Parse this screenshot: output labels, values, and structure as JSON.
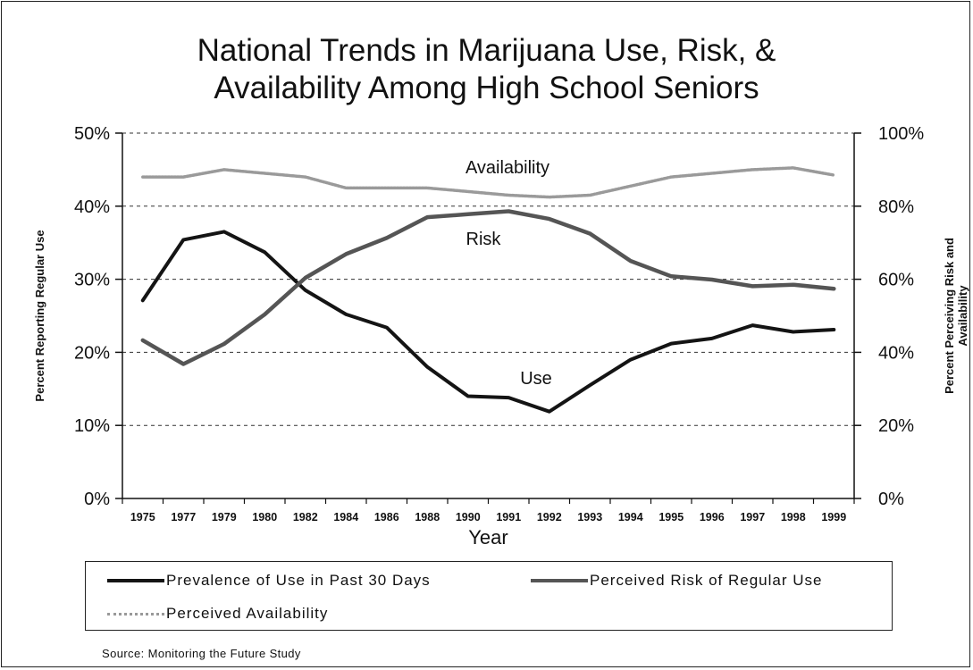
{
  "chart_data": {
    "type": "line",
    "title": [
      "National Trends in Marijuana Use, Risk, &",
      "Availability Among High School Seniors"
    ],
    "xlabel": "Year",
    "ylabel_left": "Percent Reporting Regular Use",
    "ylabel_right": [
      "Percent Perceiving Risk and",
      "Availability"
    ],
    "categories": [
      "1975",
      "1977",
      "1979",
      "1980",
      "1982",
      "1984",
      "1986",
      "1988",
      "1990",
      "1991",
      "1992",
      "1993",
      "1994",
      "1995",
      "1996",
      "1997",
      "1998",
      "1999"
    ],
    "y_left": {
      "range": [
        0,
        50
      ],
      "ticks": [
        "0%",
        "10%",
        "20%",
        "30%",
        "40%",
        "50%"
      ]
    },
    "y_right": {
      "range": [
        0,
        100
      ],
      "ticks": [
        "0%",
        "20%",
        "40%",
        "60%",
        "80%",
        "100%"
      ]
    },
    "series": [
      {
        "name": "Prevalence of Use in Past 30 Days",
        "axis": "left",
        "color": "#141414",
        "values": [
          27.1,
          35.4,
          36.5,
          33.7,
          28.5,
          25.2,
          23.4,
          18.0,
          14.0,
          13.8,
          11.9,
          15.5,
          19.0,
          21.2,
          21.9,
          23.7,
          22.8,
          23.1
        ]
      },
      {
        "name": "Perceived Risk of Regular Use",
        "axis": "right",
        "color": "#555555",
        "values": [
          43.3,
          36.8,
          42.3,
          50.4,
          60.4,
          66.9,
          71.3,
          77.0,
          77.8,
          78.6,
          76.5,
          72.5,
          65.0,
          60.8,
          59.9,
          58.1,
          58.5,
          57.4
        ]
      },
      {
        "name": "Perceived Availability",
        "axis": "right",
        "color": "#9a9a9a",
        "values": [
          88.0,
          88.0,
          90.0,
          89.0,
          88.0,
          85.0,
          85.0,
          85.0,
          84.0,
          83.0,
          82.5,
          83.0,
          85.5,
          88.0,
          89.0,
          90.0,
          90.5,
          88.5
        ]
      }
    ],
    "annotations": [
      {
        "text": "Availability",
        "series": "Perceived Availability"
      },
      {
        "text": "Risk",
        "series": "Perceived Risk of Regular Use"
      },
      {
        "text": "Use",
        "series": "Prevalence of Use in Past 30 Days"
      }
    ],
    "grid": true,
    "legend_position": "bottom"
  },
  "legend": [
    {
      "label": "Prevalence of Use in Past 30 Days"
    },
    {
      "label": "Perceived Risk of Regular Use"
    },
    {
      "label": "Perceived Availability"
    }
  ],
  "source": "Source: Monitoring the Future Study"
}
